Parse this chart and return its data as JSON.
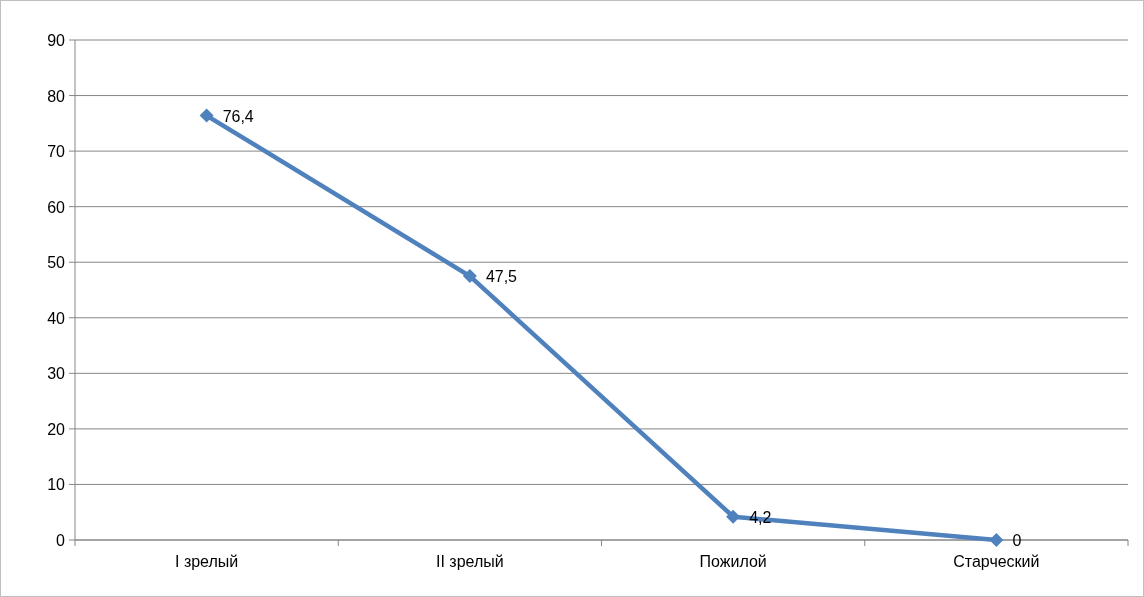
{
  "chart_data": {
    "type": "line",
    "categories": [
      "I зрелый",
      "II зрелый",
      "Пожилой",
      "Старческий"
    ],
    "series": [
      {
        "color": "#4f81bd",
        "values": [
          76.4,
          47.5,
          4.2,
          0
        ],
        "value_labels": [
          "76,4",
          "47,5",
          "4,2",
          "0"
        ]
      }
    ],
    "ylim": [
      0,
      90
    ],
    "yticks": [
      0,
      10,
      20,
      30,
      40,
      50,
      60,
      70,
      80,
      90
    ],
    "grid": "y",
    "marker": "diamond",
    "line_style": "solid"
  }
}
